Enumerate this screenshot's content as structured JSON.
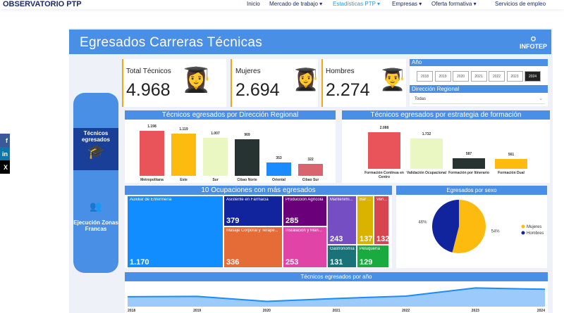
{
  "nav": {
    "logo": "OBSERVATORIO PTP",
    "items": [
      {
        "label": "Inicio"
      },
      {
        "label": "Mercado de trabajo ▾"
      },
      {
        "label": "Estadísticas PTP ▾"
      },
      {
        "label": "Empresas ▾"
      },
      {
        "label": "Oferta formativa ▾"
      },
      {
        "label": "Servicios de empleo"
      }
    ]
  },
  "share": {
    "facebook": "f",
    "linkedin": "in",
    "x": "X"
  },
  "dashboard": {
    "title": "Egresados Carreras Técnicas",
    "brand": "INFOTEP",
    "sidebar": [
      {
        "label": "Técnicos egresados"
      },
      {
        "label": "Ejecución Zonas Francas"
      }
    ],
    "kpis": [
      {
        "label": "Total Técnicos",
        "value": "4.968"
      },
      {
        "label": "Mujeres",
        "value": "2.694"
      },
      {
        "label": "Hombres",
        "value": "2.274"
      }
    ],
    "filters": {
      "year_label": "Año",
      "years": [
        "2018",
        "2019",
        "2020",
        "2021",
        "2022",
        "2023",
        "2024"
      ],
      "selected_year": "2024",
      "region_label": "Dirección Regional",
      "region_value": "Todas"
    }
  },
  "chart_data": [
    {
      "type": "bar",
      "title": "Técnicos egresados por Dirección Regional",
      "categories": [
        "Metropolitana",
        "Este",
        "Sur",
        "Cibao Norte",
        "Oriental",
        "Cibao Sur"
      ],
      "values": [
        1198,
        1119,
        1007,
        969,
        353,
        322
      ],
      "labels": [
        "1.198",
        "1.119",
        "1.007",
        "969",
        "353",
        "322"
      ],
      "colors": [
        "#e8545a",
        "#fdbb0f",
        "#eaf7c3",
        "#263330",
        "#1a8cff",
        "#d9646f"
      ]
    },
    {
      "type": "bar",
      "title": "Técnicos egresados por estrategia de formación",
      "categories": [
        "Formación Continua en Centro",
        "Validación Ocupacional",
        "Formación por Itinerario",
        "Formación Dual"
      ],
      "values": [
        2088,
        1732,
        587,
        561
      ],
      "labels": [
        "2.088",
        "1.732",
        "587",
        "561"
      ],
      "colors": [
        "#e8545a",
        "#eaf7c3",
        "#263330",
        "#fdbb0f"
      ]
    },
    {
      "type": "treemap",
      "title": "10 Ocupaciones con más egresados",
      "items": [
        {
          "name": "Auxiliar de Enfermería",
          "value": "1.170"
        },
        {
          "name": "Asistente en Farmacia",
          "value": "379"
        },
        {
          "name": "Masaje Corporal y Terapé...",
          "value": "336"
        },
        {
          "name": "Producción Agrícola",
          "value": "285"
        },
        {
          "name": "Instalación y Man...",
          "value": "253"
        },
        {
          "name": "Mantenimi...",
          "value": "243"
        },
        {
          "name": "Bar ...",
          "value": "137"
        },
        {
          "name": "Ven...",
          "value": "132"
        },
        {
          "name": "Gastronomía",
          "value": "131"
        },
        {
          "name": "Peluquería",
          "value": "129"
        }
      ]
    },
    {
      "type": "pie",
      "title": "Egresados por sexo",
      "series": [
        {
          "name": "Mujeres",
          "value": 54,
          "label": "54%",
          "color": "#fdbb0f"
        },
        {
          "name": "Hombres",
          "value": 46,
          "label": "46%",
          "color": "#12239e"
        }
      ]
    },
    {
      "type": "area",
      "title": "Técnicos egresados por año",
      "x": [
        "2018",
        "2019",
        "2020",
        "2021",
        "2022",
        "2023",
        "2024"
      ],
      "values": [
        3700,
        3750,
        2900,
        3400,
        3800,
        5200,
        4968
      ]
    }
  ]
}
